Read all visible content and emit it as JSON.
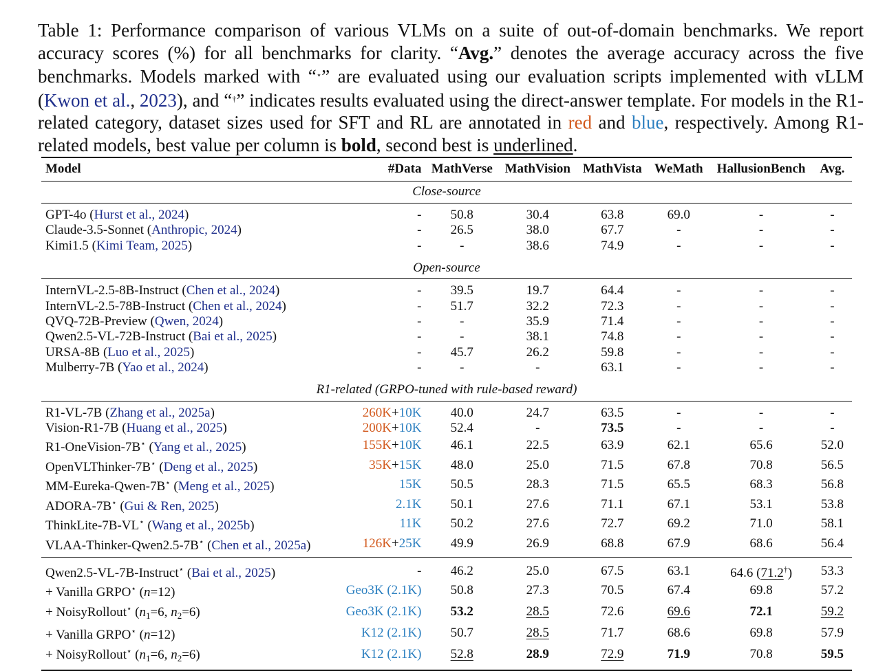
{
  "caption": {
    "label": "Table 1:",
    "part1": " Performance comparison of various VLMs on a suite of out-of-domain benchmarks. We report accuracy scores (%) for all benchmarks for clarity. “",
    "avg": "Avg.",
    "part2": "” denotes the average accuracy across the five benchmarks. Models marked with “",
    "star_mark": "⋆",
    "part3": "” are evaluated using our evaluation scripts implemented with vLLM (",
    "cite_author": "Kwon et al.",
    "cite_sep": ", ",
    "cite_year": "2023",
    "part4": "), and “",
    "dagger_mark": "†",
    "part5": "” indicates results evaluated using the direct-answer template. For models in the R1-related category, dataset sizes used for SFT and RL are annotated in ",
    "red_word": "red",
    "and_word": " and ",
    "blue_word": "blue",
    "part6": ", respectively. Among R1-related models, best value per column is ",
    "bold_word": "bold",
    "part7": ", second best is ",
    "underlined_word": "underlined",
    "part8": "."
  },
  "table": {
    "headers": [
      "Model",
      "#Data",
      "MathVerse",
      "MathVision",
      "MathVista",
      "WeMath",
      "HallusionBench",
      "Avg."
    ],
    "sections": [
      {
        "title": "Close-source",
        "rows": [
          {
            "name": "GPT-4o",
            "cite": "Hurst et al., 2024",
            "data": "-",
            "cells": [
              "50.8",
              "30.4",
              "63.8",
              "69.0",
              "-",
              "-"
            ]
          },
          {
            "name": "Claude-3.5-Sonnet",
            "cite": "Anthropic, 2024",
            "data": "-",
            "cells": [
              "26.5",
              "38.0",
              "67.7",
              "-",
              "-",
              "-"
            ]
          },
          {
            "name": "Kimi1.5",
            "cite": "Kimi Team, 2025",
            "data": "-",
            "cells": [
              "-",
              "38.6",
              "74.9",
              "-",
              "-",
              "-"
            ]
          }
        ]
      },
      {
        "title": "Open-source",
        "rows": [
          {
            "name": "InternVL-2.5-8B-Instruct",
            "cite": "Chen et al., 2024",
            "data": "-",
            "cells": [
              "39.5",
              "19.7",
              "64.4",
              "-",
              "-",
              "-"
            ]
          },
          {
            "name": "InternVL-2.5-78B-Instruct",
            "cite": "Chen et al., 2024",
            "data": "-",
            "cells": [
              "51.7",
              "32.2",
              "72.3",
              "-",
              "-",
              "-"
            ]
          },
          {
            "name": "QVQ-72B-Preview",
            "cite": "Qwen, 2024",
            "data": "-",
            "cells": [
              "-",
              "35.9",
              "71.4",
              "-",
              "-",
              "-"
            ]
          },
          {
            "name": "Qwen2.5-VL-72B-Instruct",
            "cite": "Bai et al., 2025",
            "data": "-",
            "cells": [
              "-",
              "38.1",
              "74.8",
              "-",
              "-",
              "-"
            ]
          },
          {
            "name": "URSA-8B",
            "cite": "Luo et al., 2025",
            "data": "-",
            "cells": [
              "45.7",
              "26.2",
              "59.8",
              "-",
              "-",
              "-"
            ]
          },
          {
            "name": "Mulberry-7B",
            "cite": "Yao et al., 2024",
            "data": "-",
            "cells": [
              "-",
              "-",
              "63.1",
              "-",
              "-",
              "-"
            ]
          }
        ]
      },
      {
        "title": "R1-related (GRPO-tuned with rule-based reward)",
        "rows": [
          {
            "name": "R1-VL-7B",
            "cite": "Zhang et al., 2025a",
            "sft": "260K",
            "rl": "10K",
            "cells": [
              "40.0",
              "24.7",
              "63.5",
              "-",
              "-",
              "-"
            ]
          },
          {
            "name": "Vision-R1-7B",
            "cite": "Huang et al., 2025",
            "sft": "200K",
            "rl": "10K",
            "cells": [
              "52.4",
              "-",
              "73.5",
              "-",
              "-",
              "-"
            ],
            "bold": [
              2
            ]
          },
          {
            "name": "R1-OneVision-7B",
            "star": "⋆",
            "cite": "Yang et al., 2025",
            "sft": "155K",
            "rl": "10K",
            "cells": [
              "46.1",
              "22.5",
              "63.9",
              "62.1",
              "65.6",
              "52.0"
            ]
          },
          {
            "name": "OpenVLThinker-7B",
            "star": "⋆",
            "cite": "Deng et al., 2025",
            "sft": "35K",
            "rl": "15K",
            "cells": [
              "48.0",
              "25.0",
              "71.5",
              "67.8",
              "70.8",
              "56.5"
            ]
          },
          {
            "name": "MM-Eureka-Qwen-7B",
            "star": "⋆",
            "cite": "Meng et al., 2025",
            "rl": "15K",
            "cells": [
              "50.5",
              "28.3",
              "71.5",
              "65.5",
              "68.3",
              "56.8"
            ]
          },
          {
            "name": "ADORA-7B",
            "star": "⋆",
            "cite": "Gui & Ren, 2025",
            "rl": "2.1K",
            "cells": [
              "50.1",
              "27.6",
              "71.1",
              "67.1",
              "53.1",
              "53.8"
            ]
          },
          {
            "name": "ThinkLite-7B-VL",
            "star": "⋆",
            "cite": "Wang et al., 2025b",
            "rl": "11K",
            "cells": [
              "50.2",
              "27.6",
              "72.7",
              "69.2",
              "71.0",
              "58.1"
            ]
          },
          {
            "name": "VLAA-Thinker-Qwen2.5-7B",
            "star": "⋆",
            "cite": "Chen et al., 2025a",
            "sft": "126K",
            "rl": "25K",
            "cells": [
              "49.9",
              "26.9",
              "68.8",
              "67.9",
              "68.6",
              "56.4"
            ]
          }
        ]
      },
      {
        "title": "",
        "rows": [
          {
            "name": "Qwen2.5-VL-7B-Instruct",
            "star": "⋆",
            "cite": "Bai et al., 2025",
            "data": "-",
            "cells": [
              "46.2",
              "25.0",
              "67.5",
              "63.1",
              "64.6",
              "53.3"
            ],
            "extra": {
              "col": 4,
              "value": "71.2",
              "mark": "†"
            }
          },
          {
            "name": "+ Vanilla GRPO",
            "star": "⋆",
            "note": "(n=12)",
            "rl": "Geo3K (2.1K)",
            "cells": [
              "50.8",
              "27.3",
              "70.5",
              "67.4",
              "69.8",
              "57.2"
            ]
          },
          {
            "name": "+ NoisyRollout",
            "star": "⋆",
            "note": "(n1=6, n2=6)",
            "rl": "Geo3K (2.1K)",
            "cells": [
              "53.2",
              "28.5",
              "72.6",
              "69.6",
              "72.1",
              "59.2"
            ],
            "bold": [
              0,
              4
            ],
            "underline": [
              1,
              3,
              5
            ]
          },
          {
            "name": "+ Vanilla GRPO",
            "star": "⋆",
            "note": "(n=12)",
            "rl": "K12 (2.1K)",
            "cells": [
              "50.7",
              "28.5",
              "71.7",
              "68.6",
              "69.8",
              "57.9"
            ],
            "underline": [
              1
            ]
          },
          {
            "name": "+ NoisyRollout",
            "star": "⋆",
            "note": "(n1=6, n2=6)",
            "rl": "K12 (2.1K)",
            "cells": [
              "52.8",
              "28.9",
              "72.9",
              "71.9",
              "70.8",
              "59.5"
            ],
            "bold": [
              1,
              3,
              5
            ],
            "underline": [
              0,
              2
            ]
          }
        ]
      }
    ]
  }
}
